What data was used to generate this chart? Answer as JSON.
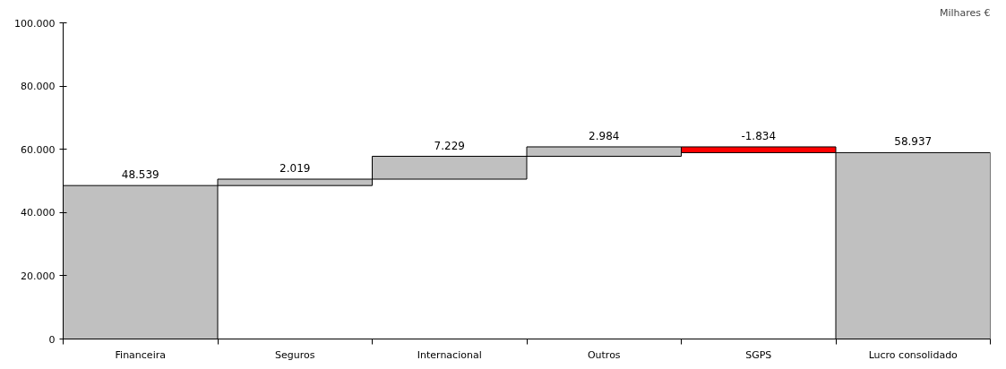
{
  "chart_data": {
    "type": "bar",
    "categories": [
      "Financeira",
      "Seguros",
      "Internacional",
      "Outros",
      "SGPS",
      "Lucro consolidado"
    ],
    "values": [
      48539,
      2019,
      7229,
      2984,
      -1834,
      58937
    ],
    "base": [
      0,
      48539,
      50558,
      57787,
      60771,
      0
    ],
    "colors": [
      "#c0c0c0",
      "#c0c0c0",
      "#c0c0c0",
      "#c0c0c0",
      "#ff0000",
      "#c0c0c0"
    ],
    "value_labels": [
      "48.539",
      "2.019",
      "7.229",
      "2.984",
      "-1.834",
      "58.937"
    ],
    "ylim": [
      0,
      100000
    ],
    "yticks": [
      {
        "value": 0,
        "label": "0"
      },
      {
        "value": 20000,
        "label": "20.000"
      },
      {
        "value": 40000,
        "label": "40.000"
      },
      {
        "value": 60000,
        "label": "60.000"
      },
      {
        "value": 80000,
        "label": "80.000"
      },
      {
        "value": 100000,
        "label": "100.000"
      }
    ],
    "annotations": [
      "Milhares €"
    ],
    "grid": false
  }
}
